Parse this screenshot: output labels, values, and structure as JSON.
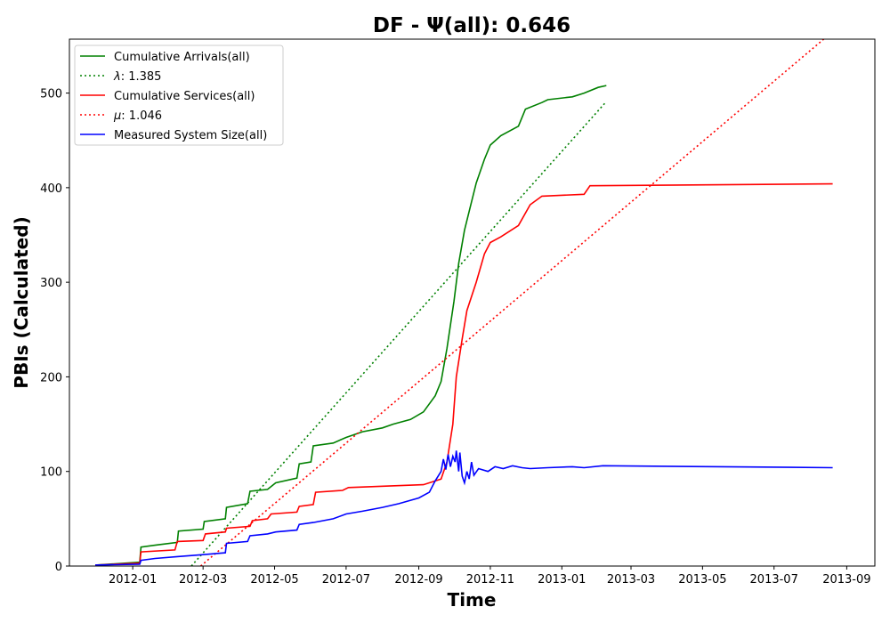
{
  "chart_data": {
    "type": "line",
    "title": "DF -  Ψ(all): 0.646",
    "xlabel": "Time",
    "ylabel": "PBIs (Calculated)",
    "x_type": "date",
    "xlim": [
      "2011-11-08",
      "2013-09-25"
    ],
    "ylim": [
      0,
      557
    ],
    "x_ticks": [
      "2012-01",
      "2012-03",
      "2012-05",
      "2012-07",
      "2012-09",
      "2012-11",
      "2013-01",
      "2013-03",
      "2013-05",
      "2013-07",
      "2013-09"
    ],
    "y_ticks": [
      0,
      100,
      200,
      300,
      400,
      500
    ],
    "grid": false,
    "legend_position": "top-left",
    "series": [
      {
        "name": "Cumulative Arrivals(all)",
        "color": "#008000",
        "style": "solid",
        "points": [
          [
            "2011-11-30",
            1
          ],
          [
            "2012-01-07",
            4
          ],
          [
            "2012-01-08",
            20
          ],
          [
            "2012-01-20",
            22
          ],
          [
            "2012-02-08",
            25
          ],
          [
            "2012-02-09",
            37
          ],
          [
            "2012-03-01",
            39
          ],
          [
            "2012-03-02",
            47
          ],
          [
            "2012-03-20",
            50
          ],
          [
            "2012-03-21",
            62
          ],
          [
            "2012-04-08",
            66
          ],
          [
            "2012-04-10",
            79
          ],
          [
            "2012-04-25",
            81
          ],
          [
            "2012-05-02",
            88
          ],
          [
            "2012-05-20",
            93
          ],
          [
            "2012-05-22",
            108
          ],
          [
            "2012-06-01",
            110
          ],
          [
            "2012-06-03",
            127
          ],
          [
            "2012-06-20",
            130
          ],
          [
            "2012-07-01",
            136
          ],
          [
            "2012-07-15",
            142
          ],
          [
            "2012-08-01",
            146
          ],
          [
            "2012-08-10",
            150
          ],
          [
            "2012-08-25",
            155
          ],
          [
            "2012-09-05",
            163
          ],
          [
            "2012-09-15",
            180
          ],
          [
            "2012-09-20",
            195
          ],
          [
            "2012-09-25",
            230
          ],
          [
            "2012-10-01",
            280
          ],
          [
            "2012-10-05",
            320
          ],
          [
            "2012-10-10",
            355
          ],
          [
            "2012-10-15",
            380
          ],
          [
            "2012-10-20",
            405
          ],
          [
            "2012-10-27",
            430
          ],
          [
            "2012-11-01",
            445
          ],
          [
            "2012-11-10",
            455
          ],
          [
            "2012-11-25",
            465
          ],
          [
            "2012-12-01",
            483
          ],
          [
            "2012-12-15",
            490
          ],
          [
            "2012-12-20",
            493
          ],
          [
            "2013-01-10",
            496
          ],
          [
            "2013-01-20",
            500
          ],
          [
            "2013-02-01",
            506
          ],
          [
            "2013-02-08",
            508
          ]
        ]
      },
      {
        "name": "λ: 1.385",
        "legend_prefix": "λ",
        "legend_suffix": ": 1.385",
        "color": "#008000",
        "style": "dotted",
        "points": [
          [
            "2012-02-20",
            0
          ],
          [
            "2013-02-08",
            491
          ]
        ]
      },
      {
        "name": "Cumulative Services(all)",
        "color": "#ff0000",
        "style": "solid",
        "points": [
          [
            "2011-11-30",
            1
          ],
          [
            "2012-01-07",
            3
          ],
          [
            "2012-01-08",
            15
          ],
          [
            "2012-02-06",
            17
          ],
          [
            "2012-02-08",
            26
          ],
          [
            "2012-03-01",
            27
          ],
          [
            "2012-03-03",
            34
          ],
          [
            "2012-03-20",
            36
          ],
          [
            "2012-03-21",
            40
          ],
          [
            "2012-04-10",
            42
          ],
          [
            "2012-04-12",
            48
          ],
          [
            "2012-04-25",
            50
          ],
          [
            "2012-04-28",
            55
          ],
          [
            "2012-05-20",
            57
          ],
          [
            "2012-05-22",
            63
          ],
          [
            "2012-06-03",
            65
          ],
          [
            "2012-06-05",
            78
          ],
          [
            "2012-06-28",
            80
          ],
          [
            "2012-07-03",
            83
          ],
          [
            "2012-09-05",
            86
          ],
          [
            "2012-09-20",
            92
          ],
          [
            "2012-09-25",
            110
          ],
          [
            "2012-09-30",
            150
          ],
          [
            "2012-10-03",
            200
          ],
          [
            "2012-10-08",
            240
          ],
          [
            "2012-10-12",
            270
          ],
          [
            "2012-10-20",
            300
          ],
          [
            "2012-10-27",
            330
          ],
          [
            "2012-11-01",
            342
          ],
          [
            "2012-11-10",
            348
          ],
          [
            "2012-11-25",
            360
          ],
          [
            "2012-12-05",
            382
          ],
          [
            "2012-12-15",
            391
          ],
          [
            "2013-01-20",
            393
          ],
          [
            "2013-01-25",
            402
          ],
          [
            "2013-08-20",
            404
          ]
        ]
      },
      {
        "name": "μ: 1.046",
        "legend_prefix": "μ",
        "legend_suffix": ": 1.046",
        "color": "#ff0000",
        "style": "dotted",
        "points": [
          [
            "2012-02-28",
            0
          ],
          [
            "2013-08-20",
            565
          ]
        ]
      },
      {
        "name": "Measured System Size(all)",
        "color": "#0000ff",
        "style": "solid",
        "points": [
          [
            "2011-11-30",
            1
          ],
          [
            "2012-01-07",
            2
          ],
          [
            "2012-01-08",
            6
          ],
          [
            "2012-01-20",
            8
          ],
          [
            "2012-02-08",
            10
          ],
          [
            "2012-03-01",
            12
          ],
          [
            "2012-03-20",
            14
          ],
          [
            "2012-03-21",
            24
          ],
          [
            "2012-04-08",
            26
          ],
          [
            "2012-04-10",
            32
          ],
          [
            "2012-04-25",
            34
          ],
          [
            "2012-05-02",
            36
          ],
          [
            "2012-05-20",
            38
          ],
          [
            "2012-05-22",
            44
          ],
          [
            "2012-06-03",
            46
          ],
          [
            "2012-06-20",
            50
          ],
          [
            "2012-07-01",
            55
          ],
          [
            "2012-07-15",
            58
          ],
          [
            "2012-08-01",
            62
          ],
          [
            "2012-08-15",
            66
          ],
          [
            "2012-09-01",
            72
          ],
          [
            "2012-09-10",
            78
          ],
          [
            "2012-09-15",
            90
          ],
          [
            "2012-09-20",
            100
          ],
          [
            "2012-09-22",
            113
          ],
          [
            "2012-09-24",
            102
          ],
          [
            "2012-09-26",
            118
          ],
          [
            "2012-09-28",
            105
          ],
          [
            "2012-09-30",
            116
          ],
          [
            "2012-10-02",
            110
          ],
          [
            "2012-10-03",
            122
          ],
          [
            "2012-10-05",
            100
          ],
          [
            "2012-10-06",
            120
          ],
          [
            "2012-10-08",
            95
          ],
          [
            "2012-10-10",
            88
          ],
          [
            "2012-10-12",
            100
          ],
          [
            "2012-10-14",
            92
          ],
          [
            "2012-10-16",
            110
          ],
          [
            "2012-10-18",
            96
          ],
          [
            "2012-10-22",
            103
          ],
          [
            "2012-10-30",
            100
          ],
          [
            "2012-11-05",
            105
          ],
          [
            "2012-11-12",
            103
          ],
          [
            "2012-11-20",
            106
          ],
          [
            "2012-11-28",
            104
          ],
          [
            "2012-12-05",
            103
          ],
          [
            "2012-12-20",
            104
          ],
          [
            "2013-01-10",
            105
          ],
          [
            "2013-01-20",
            104
          ],
          [
            "2013-02-05",
            106
          ],
          [
            "2013-08-20",
            104
          ]
        ]
      }
    ]
  }
}
